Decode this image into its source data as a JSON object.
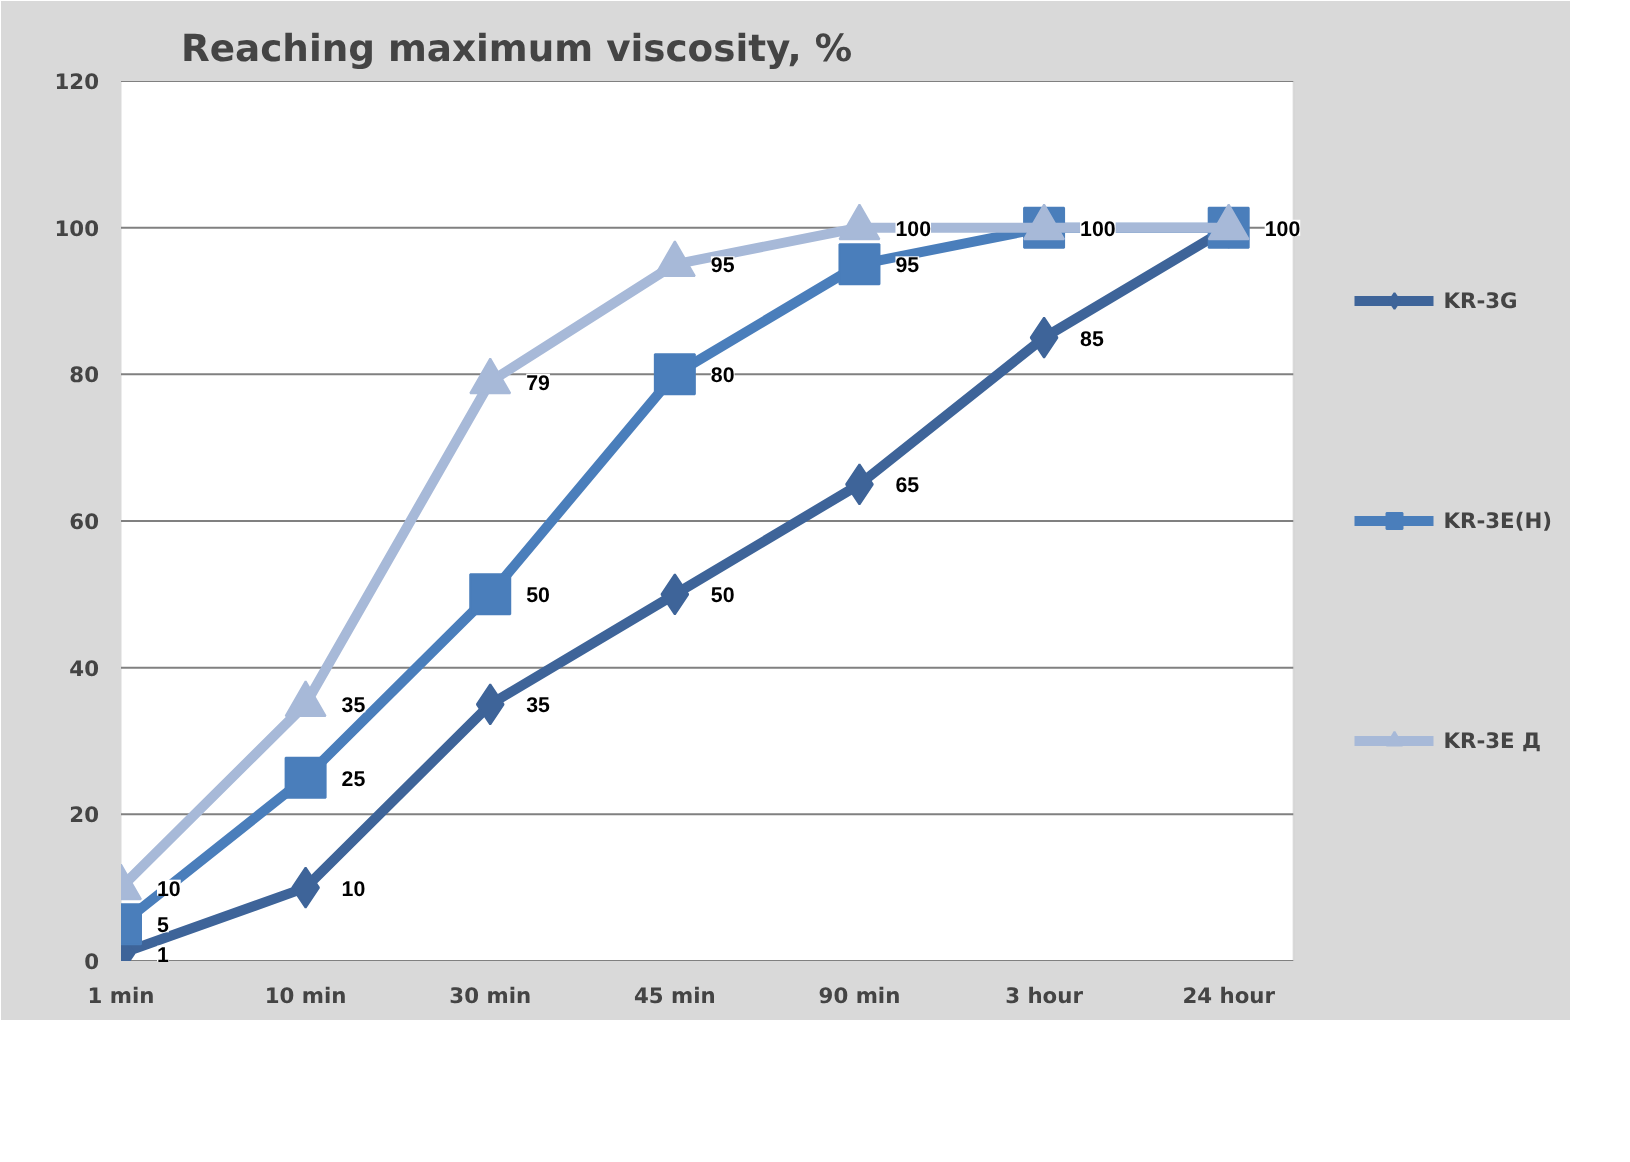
{
  "chart_data": {
    "type": "line",
    "title": "Reaching maximum viscosity, %",
    "categories": [
      "1 min",
      "10 min",
      "30 min",
      "45 min",
      "90 min",
      "3 hour",
      "24 hour"
    ],
    "ylim": [
      0,
      120
    ],
    "yticks": [
      0,
      20,
      40,
      60,
      80,
      100,
      120
    ],
    "grid": "y",
    "legend": "right",
    "series": [
      {
        "name": "KR-3G",
        "color": "#3e6499",
        "marker": "diamond",
        "values": [
          1,
          10,
          35,
          50,
          65,
          85,
          100
        ],
        "value_labels": [
          "1",
          "10",
          "35",
          "50",
          "65",
          "85",
          "100"
        ]
      },
      {
        "name": "KR-3E(H)",
        "color": "#4a7ebb",
        "marker": "square",
        "values": [
          5,
          25,
          50,
          80,
          95,
          100,
          100
        ],
        "value_labels": [
          "5",
          "25",
          "50",
          "80",
          "95",
          "100",
          null
        ]
      },
      {
        "name": "KR-3E Д",
        "color": "#a7b9d8",
        "marker": "triangle",
        "values": [
          10,
          35,
          79,
          95,
          100,
          100,
          100
        ],
        "value_labels": [
          "10",
          "35",
          "79",
          "95",
          "100",
          null,
          null
        ]
      }
    ]
  }
}
